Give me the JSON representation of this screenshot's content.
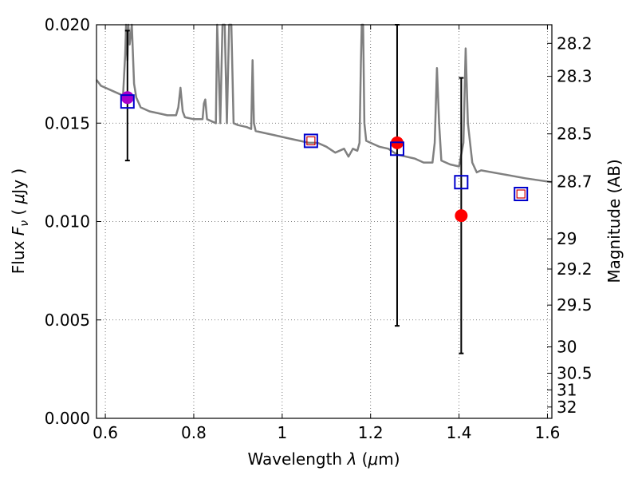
{
  "chart_data": {
    "type": "scatter",
    "xlabel": "Wavelength  λ (μm)",
    "xlabel_parts": [
      "Wavelength  ",
      "λ",
      " (",
      "μ",
      "m)"
    ],
    "ylabel_parts": [
      "Flux  ",
      "F",
      "ν",
      "  ( ",
      "μ",
      "Jy )"
    ],
    "ylabel_right": "Magnitude (AB)",
    "xlim": [
      0.58,
      1.61
    ],
    "ylim": [
      0.0,
      0.02
    ],
    "grid": true,
    "x_ticks": [
      0.6,
      0.8,
      1.0,
      1.2,
      1.4,
      1.6
    ],
    "x_tick_labels": [
      "0.6",
      "0.8",
      "1",
      "1.2",
      "1.4",
      "1.6"
    ],
    "y_ticks": [
      0.0,
      0.005,
      0.01,
      0.015,
      0.02
    ],
    "y_tick_labels": [
      "0.000",
      "0.005",
      "0.010",
      "0.015",
      "0.020"
    ],
    "right_ticks": [
      {
        "label": "28.2",
        "mag": 28.2
      },
      {
        "label": "28.3",
        "mag": 28.3
      },
      {
        "label": "28.5",
        "mag": 28.5
      },
      {
        "label": "28.7",
        "mag": 28.7
      },
      {
        "label": "29",
        "mag": 29
      },
      {
        "label": "29.2",
        "mag": 29.2
      },
      {
        "label": "29.5",
        "mag": 29.5
      },
      {
        "label": "30",
        "mag": 30
      },
      {
        "label": "30.5",
        "mag": 30.5
      },
      {
        "label": "31",
        "mag": 31
      },
      {
        "label": "32",
        "mag": 32
      }
    ],
    "colors": {
      "template": "#808080",
      "model": "#0000cc",
      "observed": "#ff0000",
      "observed_blue_band": "#aa00cc",
      "inner_square": "#cc0000",
      "errorbar": "#000000",
      "grid": "#555555"
    },
    "template_spectrum": {
      "x": [
        0.58,
        0.59,
        0.6,
        0.62,
        0.64,
        0.645,
        0.647,
        0.65,
        0.652,
        0.655,
        0.66,
        0.665,
        0.67,
        0.68,
        0.7,
        0.72,
        0.74,
        0.76,
        0.765,
        0.77,
        0.775,
        0.78,
        0.8,
        0.82,
        0.823,
        0.826,
        0.83,
        0.85,
        0.853,
        0.856,
        0.86,
        0.865,
        0.87,
        0.875,
        0.88,
        0.885,
        0.89,
        0.9,
        0.92,
        0.93,
        0.933,
        0.936,
        0.94,
        0.96,
        0.98,
        1.0,
        1.02,
        1.04,
        1.06,
        1.08,
        1.1,
        1.12,
        1.14,
        1.15,
        1.16,
        1.17,
        1.175,
        1.178,
        1.18,
        1.183,
        1.186,
        1.19,
        1.2,
        1.21,
        1.22,
        1.24,
        1.26,
        1.28,
        1.3,
        1.32,
        1.34,
        1.345,
        1.35,
        1.355,
        1.36,
        1.38,
        1.4,
        1.41,
        1.415,
        1.42,
        1.43,
        1.44,
        1.45,
        1.5,
        1.55,
        1.61
      ],
      "y": [
        0.0172,
        0.0169,
        0.0168,
        0.0166,
        0.0164,
        0.0185,
        0.0205,
        0.0182,
        0.0205,
        0.019,
        0.0205,
        0.017,
        0.0163,
        0.0158,
        0.0156,
        0.0155,
        0.0154,
        0.0154,
        0.0158,
        0.0168,
        0.0156,
        0.0153,
        0.0152,
        0.0152,
        0.016,
        0.0162,
        0.0152,
        0.015,
        0.0205,
        0.018,
        0.015,
        0.0205,
        0.0205,
        0.015,
        0.0205,
        0.0205,
        0.015,
        0.0149,
        0.0148,
        0.0147,
        0.0182,
        0.015,
        0.0146,
        0.0145,
        0.0144,
        0.0143,
        0.0142,
        0.0141,
        0.014,
        0.014,
        0.0138,
        0.0135,
        0.0137,
        0.0133,
        0.0137,
        0.0136,
        0.014,
        0.018,
        0.0205,
        0.0205,
        0.015,
        0.0141,
        0.014,
        0.0139,
        0.0138,
        0.0137,
        0.0134,
        0.0133,
        0.0132,
        0.013,
        0.013,
        0.014,
        0.0178,
        0.015,
        0.0131,
        0.0129,
        0.0128,
        0.014,
        0.0188,
        0.015,
        0.013,
        0.0125,
        0.0126,
        0.0124,
        0.0122,
        0.012
      ]
    },
    "model_points": [
      {
        "x": 0.65,
        "y": 0.0161
      },
      {
        "x": 1.065,
        "y": 0.0141
      },
      {
        "x": 1.26,
        "y": 0.0137
      },
      {
        "x": 1.405,
        "y": 0.012
      },
      {
        "x": 1.54,
        "y": 0.0114
      }
    ],
    "inner_squares": [
      {
        "x": 1.065,
        "y": 0.0141
      },
      {
        "x": 1.54,
        "y": 0.0114
      }
    ],
    "observed_points": [
      {
        "x": 0.65,
        "y": 0.0163,
        "yerr": [
          0.0131,
          0.0197
        ],
        "color_key": "observed_blue_band"
      },
      {
        "x": 1.26,
        "y": 0.014,
        "yerr": [
          0.0047,
          0.02
        ],
        "color_key": "observed"
      },
      {
        "x": 1.405,
        "y": 0.0103,
        "yerr": [
          0.0033,
          0.0173
        ],
        "color_key": "observed"
      }
    ]
  }
}
